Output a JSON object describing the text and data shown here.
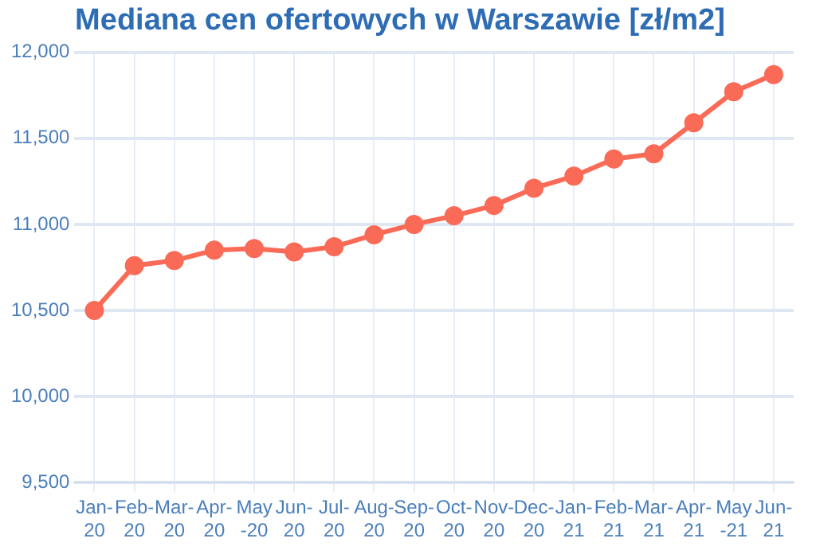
{
  "chart_data": {
    "type": "line",
    "title": "Mediana cen ofertowych w Warszawie [zł/m2]",
    "categories": [
      "Jan-20",
      "Feb-20",
      "Mar-20",
      "Apr-20",
      "May -20",
      "Jun-20",
      "Jul-20",
      "Aug-20",
      "Sep-20",
      "Oct-20",
      "Nov-20",
      "Dec-20",
      "Jan-21",
      "Feb-21",
      "Mar-21",
      "Apr-21",
      "May -21",
      "Jun-21"
    ],
    "series": [
      {
        "color": "#fa6b57",
        "values": [
          10500,
          10760,
          10790,
          10850,
          10860,
          10840,
          10870,
          10940,
          11000,
          11050,
          11110,
          11210,
          11280,
          11380,
          11410,
          11590,
          11770,
          11870
        ]
      }
    ],
    "ylim": [
      9500,
      12000
    ],
    "yticks": [
      {
        "value": 9500,
        "label": "9,500"
      },
      {
        "value": 10000,
        "label": "10,000"
      },
      {
        "value": 10500,
        "label": "10,500"
      },
      {
        "value": 11000,
        "label": "11,000"
      },
      {
        "value": 11500,
        "label": "11,500"
      },
      {
        "value": 12000,
        "label": "12,000"
      }
    ],
    "grid": true,
    "legend": false,
    "marker": "circle",
    "line_style": "solid"
  }
}
